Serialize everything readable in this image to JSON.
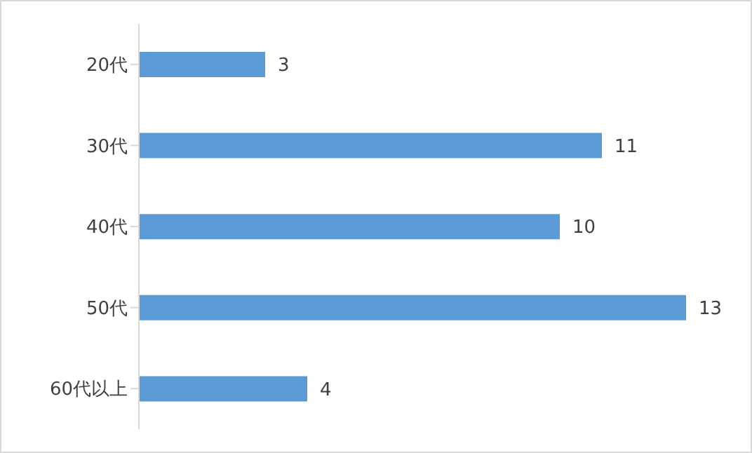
{
  "chart_data": {
    "type": "bar",
    "orientation": "horizontal",
    "categories": [
      "20代",
      "30代",
      "40代",
      "50代",
      "60代以上"
    ],
    "values": [
      3,
      11,
      10,
      13,
      4
    ],
    "color": "#5b9bd5",
    "data_labels": true
  }
}
